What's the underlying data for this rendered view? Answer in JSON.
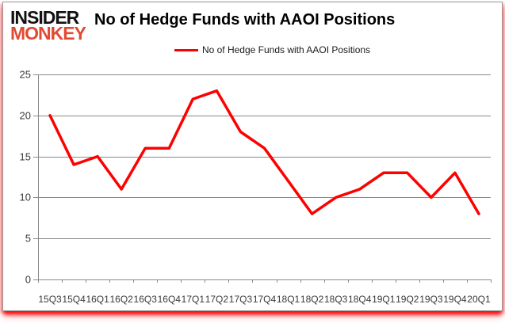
{
  "brand": {
    "line1": "INSIDER",
    "line2": "MONKEY"
  },
  "header": {
    "title": "No of Hedge Funds with AAOI Positions"
  },
  "legend": {
    "label": "No of Hedge Funds with AAOI Positions"
  },
  "colors": {
    "series_line": "#ff0000",
    "grid": "#898989",
    "axis": "#898989",
    "tick_label": "#3a3a3a",
    "title_text": "#000000",
    "brand_black": "#111111",
    "brand_red": "#e04b32"
  },
  "chart_data": {
    "type": "line",
    "title": "No of Hedge Funds with AAOI Positions",
    "categories": [
      "15Q3",
      "15Q4",
      "16Q1",
      "16Q2",
      "16Q3",
      "16Q4",
      "17Q1",
      "17Q2",
      "17Q3",
      "17Q4",
      "18Q1",
      "18Q2",
      "18Q3",
      "18Q4",
      "19Q1",
      "19Q2",
      "19Q3",
      "19Q4",
      "20Q1"
    ],
    "series": [
      {
        "name": "No of Hedge Funds with AAOI Positions",
        "color": "#ff0000",
        "values": [
          20,
          14,
          15,
          11,
          16,
          16,
          22,
          23,
          18,
          16,
          12,
          8,
          10,
          11,
          13,
          13,
          10,
          13,
          8
        ]
      }
    ],
    "xlabel": "",
    "ylabel": "",
    "ylim": [
      0,
      25
    ],
    "yticks": [
      0,
      5,
      10,
      15,
      20,
      25
    ],
    "grid": true,
    "legend_position": "top-center"
  }
}
